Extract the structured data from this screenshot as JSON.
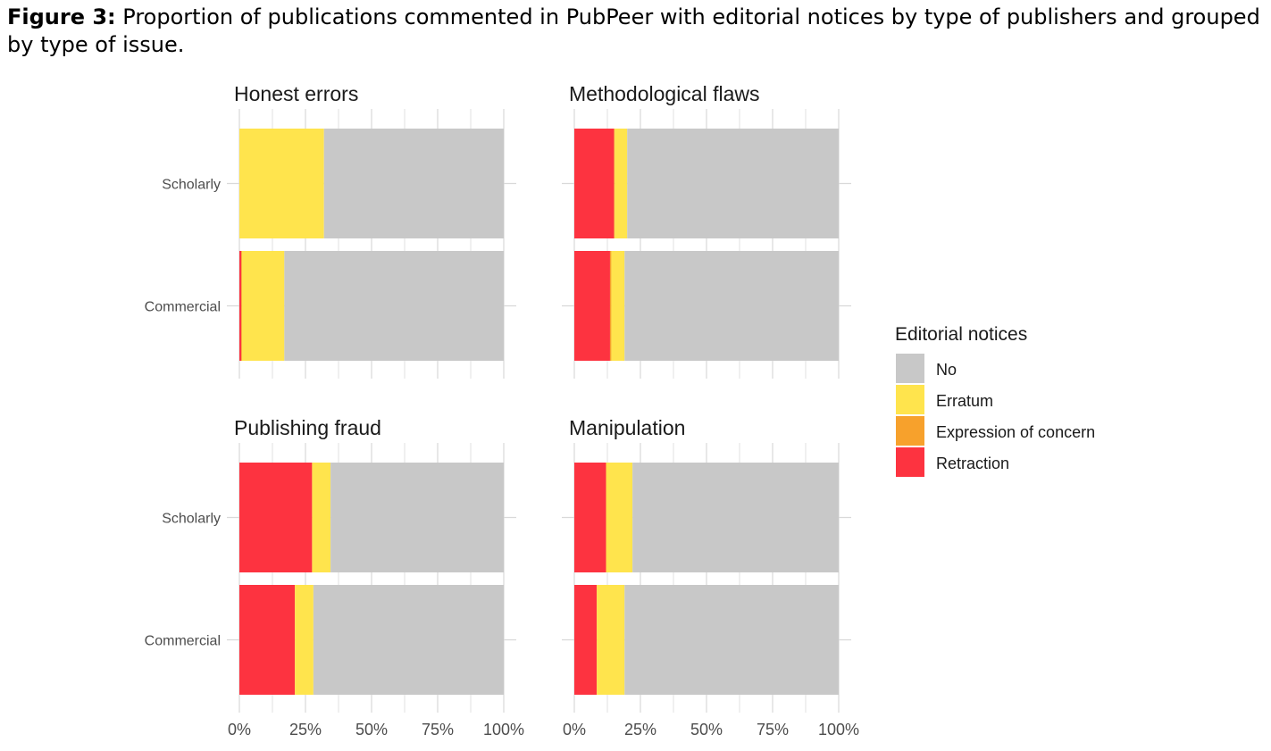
{
  "figure": {
    "label": "Figure 3:",
    "caption": " Proportion of publications commented in PubPeer with editorial notices by type of publishers and grouped by type of issue."
  },
  "colors": {
    "No": "#c8c8c8",
    "Erratum": "#ffe44d",
    "Expression of concern": "#f7a12c",
    "Retraction": "#fd3340",
    "grid": "#d9d9d9"
  },
  "chart_data": {
    "type": "bar",
    "orientation": "horizontal",
    "stacked": true,
    "facets": [
      "Honest errors",
      "Methodological flaws",
      "Publishing fraud",
      "Manipulation"
    ],
    "categories": [
      "Scholarly",
      "Commercial"
    ],
    "x_ticks": [
      "0%",
      "25%",
      "50%",
      "75%",
      "100%"
    ],
    "xlim": [
      0,
      100
    ],
    "grid": true,
    "legend": {
      "title": "Editorial notices",
      "entries": [
        "No",
        "Erratum",
        "Expression of concern",
        "Retraction"
      ],
      "position": "right"
    },
    "stack_order": [
      "Retraction",
      "Expression of concern",
      "Erratum",
      "No"
    ],
    "panels": [
      {
        "facet": "Honest errors",
        "bars": [
          {
            "category": "Scholarly",
            "Retraction": 0,
            "Expression of concern": 0,
            "Erratum": 32,
            "No": 68
          },
          {
            "category": "Commercial",
            "Retraction": 0.7,
            "Expression of concern": 0.3,
            "Erratum": 16,
            "No": 83
          }
        ]
      },
      {
        "facet": "Methodological flaws",
        "bars": [
          {
            "category": "Scholarly",
            "Retraction": 15,
            "Expression of concern": 0.3,
            "Erratum": 4.7,
            "No": 80
          },
          {
            "category": "Commercial",
            "Retraction": 13.5,
            "Expression of concern": 0.5,
            "Erratum": 5,
            "No": 81
          }
        ]
      },
      {
        "facet": "Publishing fraud",
        "bars": [
          {
            "category": "Scholarly",
            "Retraction": 27.5,
            "Expression of concern": 0,
            "Erratum": 7,
            "No": 65.5
          },
          {
            "category": "Commercial",
            "Retraction": 21,
            "Expression of concern": 0,
            "Erratum": 7,
            "No": 72
          }
        ]
      },
      {
        "facet": "Manipulation",
        "bars": [
          {
            "category": "Scholarly",
            "Retraction": 12,
            "Expression of concern": 0,
            "Erratum": 10,
            "No": 78
          },
          {
            "category": "Commercial",
            "Retraction": 8.5,
            "Expression of concern": 0,
            "Erratum": 10.5,
            "No": 81
          }
        ]
      }
    ]
  }
}
